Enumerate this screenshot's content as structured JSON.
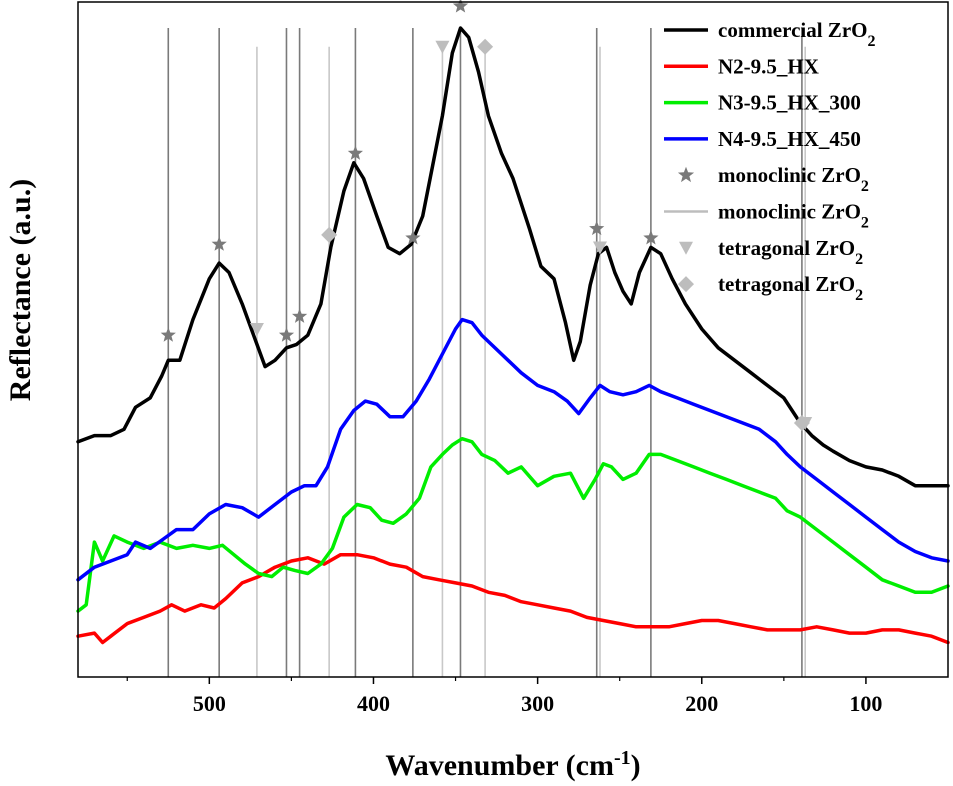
{
  "chart_data": {
    "type": "line",
    "xlabel": "Wavenumber (cm",
    "xlabel_superscript": "-1",
    "xlabel_tail": ")",
    "ylabel": "Reflectance (a.u.)",
    "xlim": [
      580,
      50
    ],
    "x_reversed": true,
    "y_ticks_shown": false,
    "x_ticks": [
      "500",
      "400",
      "300",
      "200",
      "100"
    ],
    "x_tick_values": [
      500,
      400,
      300,
      200,
      100
    ],
    "legend_position": "top-right",
    "series": [
      {
        "name": "commercial ZrO",
        "name_sub": "2",
        "color": "#000000",
        "points": [
          [
            580,
            0.34
          ],
          [
            570,
            0.35
          ],
          [
            560,
            0.35
          ],
          [
            552,
            0.36
          ],
          [
            545,
            0.395
          ],
          [
            536,
            0.41
          ],
          [
            529,
            0.445
          ],
          [
            525,
            0.47
          ],
          [
            518,
            0.47
          ],
          [
            510,
            0.535
          ],
          [
            500,
            0.6
          ],
          [
            494,
            0.625
          ],
          [
            488,
            0.61
          ],
          [
            480,
            0.56
          ],
          [
            473,
            0.51
          ],
          [
            466,
            0.46
          ],
          [
            460,
            0.47
          ],
          [
            453,
            0.49
          ],
          [
            447,
            0.495
          ],
          [
            440,
            0.51
          ],
          [
            432,
            0.56
          ],
          [
            426,
            0.65
          ],
          [
            418,
            0.74
          ],
          [
            412,
            0.785
          ],
          [
            406,
            0.76
          ],
          [
            398,
            0.7
          ],
          [
            391,
            0.65
          ],
          [
            384,
            0.64
          ],
          [
            377,
            0.655
          ],
          [
            370,
            0.7
          ],
          [
            364,
            0.78
          ],
          [
            358,
            0.86
          ],
          [
            352,
            0.96
          ],
          [
            347,
            1.0
          ],
          [
            342,
            0.985
          ],
          [
            336,
            0.93
          ],
          [
            330,
            0.86
          ],
          [
            322,
            0.8
          ],
          [
            315,
            0.76
          ],
          [
            305,
            0.68
          ],
          [
            298,
            0.62
          ],
          [
            290,
            0.6
          ],
          [
            283,
            0.53
          ],
          [
            278,
            0.47
          ],
          [
            274,
            0.5
          ],
          [
            268,
            0.59
          ],
          [
            263,
            0.64
          ],
          [
            258,
            0.65
          ],
          [
            253,
            0.61
          ],
          [
            248,
            0.58
          ],
          [
            243,
            0.56
          ],
          [
            238,
            0.61
          ],
          [
            231,
            0.65
          ],
          [
            225,
            0.64
          ],
          [
            218,
            0.6
          ],
          [
            210,
            0.56
          ],
          [
            200,
            0.52
          ],
          [
            190,
            0.49
          ],
          [
            180,
            0.47
          ],
          [
            170,
            0.45
          ],
          [
            160,
            0.43
          ],
          [
            150,
            0.41
          ],
          [
            145,
            0.39
          ],
          [
            140,
            0.37
          ],
          [
            133,
            0.35
          ],
          [
            126,
            0.335
          ],
          [
            120,
            0.325
          ],
          [
            110,
            0.31
          ],
          [
            100,
            0.3
          ],
          [
            90,
            0.295
          ],
          [
            80,
            0.285
          ],
          [
            70,
            0.27
          ],
          [
            60,
            0.27
          ],
          [
            50,
            0.27
          ]
        ]
      },
      {
        "name": "N2-9.5_HX",
        "color": "#ff0000",
        "points": [
          [
            580,
            0.03
          ],
          [
            570,
            0.035
          ],
          [
            565,
            0.02
          ],
          [
            560,
            0.03
          ],
          [
            550,
            0.05
          ],
          [
            540,
            0.06
          ],
          [
            530,
            0.07
          ],
          [
            523,
            0.08
          ],
          [
            515,
            0.07
          ],
          [
            505,
            0.08
          ],
          [
            497,
            0.075
          ],
          [
            490,
            0.09
          ],
          [
            480,
            0.115
          ],
          [
            470,
            0.125
          ],
          [
            460,
            0.14
          ],
          [
            450,
            0.15
          ],
          [
            440,
            0.155
          ],
          [
            430,
            0.145
          ],
          [
            420,
            0.16
          ],
          [
            410,
            0.16
          ],
          [
            400,
            0.155
          ],
          [
            390,
            0.145
          ],
          [
            380,
            0.14
          ],
          [
            370,
            0.125
          ],
          [
            360,
            0.12
          ],
          [
            350,
            0.115
          ],
          [
            340,
            0.11
          ],
          [
            330,
            0.1
          ],
          [
            320,
            0.095
          ],
          [
            310,
            0.085
          ],
          [
            300,
            0.08
          ],
          [
            290,
            0.075
          ],
          [
            280,
            0.07
          ],
          [
            270,
            0.06
          ],
          [
            260,
            0.055
          ],
          [
            250,
            0.05
          ],
          [
            240,
            0.045
          ],
          [
            230,
            0.045
          ],
          [
            220,
            0.045
          ],
          [
            210,
            0.05
          ],
          [
            200,
            0.055
          ],
          [
            190,
            0.055
          ],
          [
            180,
            0.05
          ],
          [
            170,
            0.045
          ],
          [
            160,
            0.04
          ],
          [
            150,
            0.04
          ],
          [
            140,
            0.04
          ],
          [
            130,
            0.045
          ],
          [
            120,
            0.04
          ],
          [
            110,
            0.035
          ],
          [
            100,
            0.035
          ],
          [
            90,
            0.04
          ],
          [
            80,
            0.04
          ],
          [
            70,
            0.035
          ],
          [
            60,
            0.03
          ],
          [
            50,
            0.02
          ]
        ]
      },
      {
        "name": "N3-9.5_HX_300",
        "color": "#00ee00",
        "points": [
          [
            580,
            0.07
          ],
          [
            575,
            0.08
          ],
          [
            570,
            0.18
          ],
          [
            565,
            0.15
          ],
          [
            558,
            0.19
          ],
          [
            550,
            0.18
          ],
          [
            540,
            0.17
          ],
          [
            530,
            0.18
          ],
          [
            520,
            0.17
          ],
          [
            510,
            0.175
          ],
          [
            500,
            0.17
          ],
          [
            492,
            0.175
          ],
          [
            485,
            0.16
          ],
          [
            478,
            0.145
          ],
          [
            470,
            0.13
          ],
          [
            462,
            0.125
          ],
          [
            455,
            0.14
          ],
          [
            448,
            0.135
          ],
          [
            440,
            0.13
          ],
          [
            432,
            0.145
          ],
          [
            425,
            0.17
          ],
          [
            418,
            0.22
          ],
          [
            410,
            0.24
          ],
          [
            402,
            0.235
          ],
          [
            395,
            0.215
          ],
          [
            388,
            0.21
          ],
          [
            380,
            0.225
          ],
          [
            372,
            0.25
          ],
          [
            365,
            0.3
          ],
          [
            358,
            0.32
          ],
          [
            352,
            0.335
          ],
          [
            346,
            0.345
          ],
          [
            340,
            0.34
          ],
          [
            334,
            0.32
          ],
          [
            326,
            0.31
          ],
          [
            318,
            0.29
          ],
          [
            310,
            0.3
          ],
          [
            300,
            0.27
          ],
          [
            290,
            0.285
          ],
          [
            280,
            0.29
          ],
          [
            272,
            0.25
          ],
          [
            265,
            0.28
          ],
          [
            260,
            0.305
          ],
          [
            255,
            0.3
          ],
          [
            248,
            0.28
          ],
          [
            240,
            0.29
          ],
          [
            232,
            0.32
          ],
          [
            225,
            0.32
          ],
          [
            215,
            0.31
          ],
          [
            205,
            0.3
          ],
          [
            195,
            0.29
          ],
          [
            185,
            0.28
          ],
          [
            175,
            0.27
          ],
          [
            165,
            0.26
          ],
          [
            155,
            0.25
          ],
          [
            148,
            0.23
          ],
          [
            140,
            0.22
          ],
          [
            130,
            0.2
          ],
          [
            120,
            0.18
          ],
          [
            110,
            0.16
          ],
          [
            100,
            0.14
          ],
          [
            90,
            0.12
          ],
          [
            80,
            0.11
          ],
          [
            70,
            0.1
          ],
          [
            60,
            0.1
          ],
          [
            50,
            0.11
          ]
        ]
      },
      {
        "name": "N4-9.5_HX_450",
        "color": "#0000ff",
        "points": [
          [
            580,
            0.12
          ],
          [
            570,
            0.14
          ],
          [
            560,
            0.15
          ],
          [
            550,
            0.16
          ],
          [
            545,
            0.18
          ],
          [
            536,
            0.17
          ],
          [
            528,
            0.185
          ],
          [
            520,
            0.2
          ],
          [
            510,
            0.2
          ],
          [
            500,
            0.225
          ],
          [
            490,
            0.24
          ],
          [
            480,
            0.235
          ],
          [
            470,
            0.22
          ],
          [
            460,
            0.24
          ],
          [
            450,
            0.26
          ],
          [
            442,
            0.27
          ],
          [
            435,
            0.27
          ],
          [
            428,
            0.3
          ],
          [
            420,
            0.36
          ],
          [
            412,
            0.39
          ],
          [
            405,
            0.405
          ],
          [
            398,
            0.4
          ],
          [
            390,
            0.38
          ],
          [
            382,
            0.38
          ],
          [
            374,
            0.405
          ],
          [
            366,
            0.44
          ],
          [
            358,
            0.48
          ],
          [
            350,
            0.52
          ],
          [
            346,
            0.535
          ],
          [
            340,
            0.53
          ],
          [
            334,
            0.51
          ],
          [
            326,
            0.49
          ],
          [
            318,
            0.47
          ],
          [
            310,
            0.45
          ],
          [
            300,
            0.43
          ],
          [
            290,
            0.42
          ],
          [
            282,
            0.405
          ],
          [
            275,
            0.385
          ],
          [
            268,
            0.41
          ],
          [
            262,
            0.43
          ],
          [
            256,
            0.42
          ],
          [
            248,
            0.415
          ],
          [
            240,
            0.42
          ],
          [
            232,
            0.43
          ],
          [
            225,
            0.42
          ],
          [
            215,
            0.41
          ],
          [
            205,
            0.4
          ],
          [
            195,
            0.39
          ],
          [
            185,
            0.38
          ],
          [
            175,
            0.37
          ],
          [
            165,
            0.36
          ],
          [
            155,
            0.34
          ],
          [
            148,
            0.32
          ],
          [
            140,
            0.3
          ],
          [
            130,
            0.28
          ],
          [
            120,
            0.26
          ],
          [
            110,
            0.24
          ],
          [
            100,
            0.22
          ],
          [
            90,
            0.2
          ],
          [
            80,
            0.18
          ],
          [
            70,
            0.165
          ],
          [
            60,
            0.155
          ],
          [
            50,
            0.15
          ]
        ]
      }
    ],
    "reference_lines": {
      "monoclinic": [
        525,
        494,
        453,
        445,
        411,
        376,
        347,
        264,
        231,
        139
      ],
      "tetragonal": [
        471,
        427,
        358,
        332,
        262,
        137
      ]
    },
    "markers": {
      "monoclinic_stars": [
        [
          525,
          0.51
        ],
        [
          494,
          0.655
        ],
        [
          453,
          0.51
        ],
        [
          445,
          0.54
        ],
        [
          411,
          0.8
        ],
        [
          376,
          0.665
        ],
        [
          347,
          1.035
        ],
        [
          264,
          0.68
        ],
        [
          231,
          0.665
        ]
      ],
      "tetragonal_triangles": [
        [
          471,
          0.52
        ],
        [
          358,
          0.97
        ],
        [
          262,
          0.65
        ],
        [
          137,
          0.37
        ]
      ],
      "tetragonal_diamonds": [
        [
          427,
          0.67
        ],
        [
          332,
          0.97
        ],
        [
          139,
          0.37
        ]
      ]
    }
  },
  "legend": [
    {
      "kind": "line",
      "color": "#000000",
      "label": "commercial ZrO",
      "sub": "2"
    },
    {
      "kind": "line",
      "color": "#ff0000",
      "label": "N2-9.5_HX",
      "sub": ""
    },
    {
      "kind": "line",
      "color": "#00ee00",
      "label": "N3-9.5_HX_300",
      "sub": ""
    },
    {
      "kind": "line",
      "color": "#0000ff",
      "label": "N4-9.5_HX_450",
      "sub": ""
    },
    {
      "kind": "star",
      "color": "#7a7a7a",
      "label": "monoclinic ZrO",
      "sub": "2"
    },
    {
      "kind": "refline",
      "color": "#bdbdbd",
      "label": "monoclinic ZrO",
      "sub": "2"
    },
    {
      "kind": "triangle",
      "color": "#bdbdbd",
      "label": "tetragonal ZrO",
      "sub": "2"
    },
    {
      "kind": "diamond",
      "color": "#bdbdbd",
      "label": "tetragonal ZrO",
      "sub": "2"
    }
  ],
  "colors": {
    "monoclinic_line": "#7a7a7a",
    "tetragonal_line": "#c8c8c8",
    "star_marker": "#7a7a7a",
    "tetragonal_marker": "#bdbdbd"
  }
}
